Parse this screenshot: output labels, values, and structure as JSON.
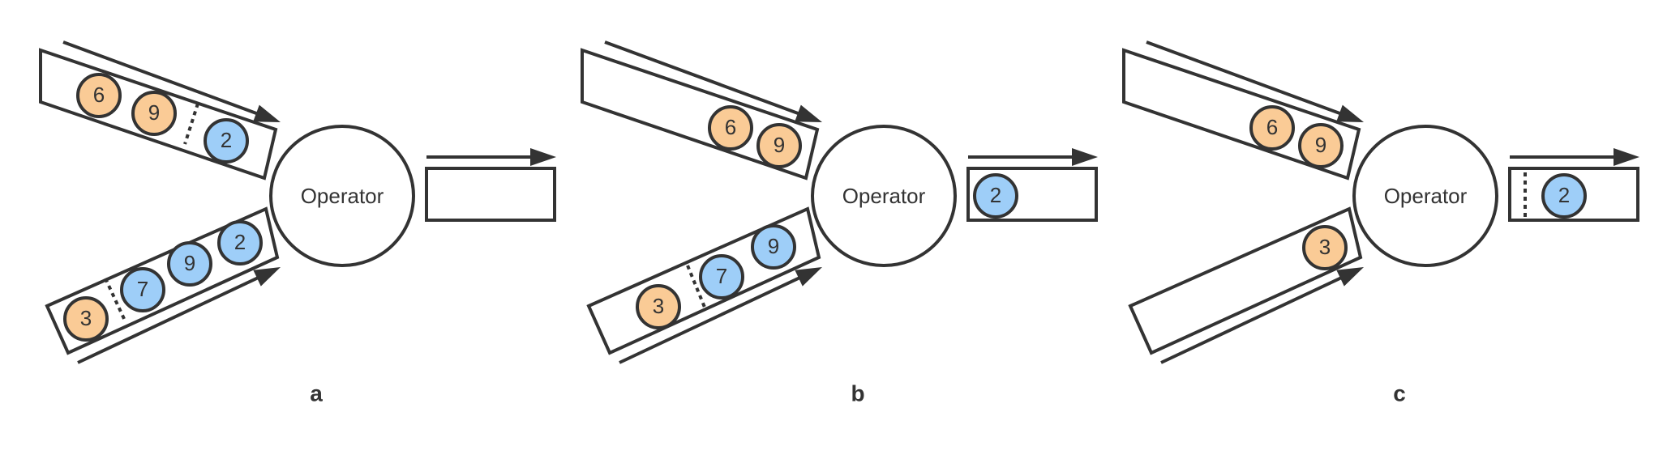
{
  "colors": {
    "stroke": "#333333",
    "orange_token": "#FACB96",
    "blue_token": "#9ECEF8",
    "background": "#FFFFFF"
  },
  "operator_label": "Operator",
  "panels": [
    {
      "caption": "a",
      "top_input_tokens": [
        {
          "label": "6",
          "kind": "orange"
        },
        {
          "label": "9",
          "kind": "orange"
        },
        {
          "label": "2",
          "kind": "blue"
        }
      ],
      "top_input_divider": true,
      "bottom_input_tokens": [
        {
          "label": "3",
          "kind": "orange"
        },
        {
          "label": "7",
          "kind": "blue"
        },
        {
          "label": "9",
          "kind": "blue"
        },
        {
          "label": "2",
          "kind": "blue"
        }
      ],
      "bottom_input_divider": true,
      "output_tokens": [],
      "output_divider": false
    },
    {
      "caption": "b",
      "top_input_tokens": [
        {
          "label": "6",
          "kind": "orange"
        },
        {
          "label": "9",
          "kind": "orange"
        }
      ],
      "top_input_divider": false,
      "bottom_input_tokens": [
        {
          "label": "3",
          "kind": "orange"
        },
        {
          "label": "7",
          "kind": "blue"
        },
        {
          "label": "9",
          "kind": "blue"
        }
      ],
      "bottom_input_divider": true,
      "output_tokens": [
        {
          "label": "2",
          "kind": "blue"
        }
      ],
      "output_divider": false
    },
    {
      "caption": "c",
      "top_input_tokens": [
        {
          "label": "6",
          "kind": "orange"
        },
        {
          "label": "9",
          "kind": "orange"
        }
      ],
      "top_input_divider": false,
      "bottom_input_tokens": [
        {
          "label": "3",
          "kind": "orange"
        }
      ],
      "bottom_input_divider": false,
      "output_tokens": [
        {
          "label": "2",
          "kind": "blue"
        }
      ],
      "output_divider": true
    }
  ]
}
